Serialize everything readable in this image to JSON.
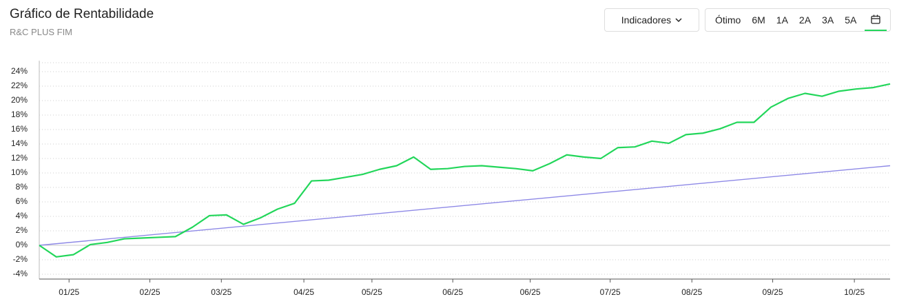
{
  "header": {
    "title": "Gráfico de Rentabilidade",
    "subtitle": "R&C PLUS FIM",
    "indicators": "Indicadores",
    "periods": [
      "Ótimo",
      "6M",
      "1A",
      "2A",
      "3A",
      "5A"
    ]
  },
  "chart_data": {
    "type": "line",
    "xlim": [
      0,
      100
    ],
    "xticks": [
      {
        "value": 3.5,
        "label": "01/25"
      },
      {
        "value": 13,
        "label": "02/25"
      },
      {
        "value": 21.4,
        "label": "03/25"
      },
      {
        "value": 31.1,
        "label": "04/25"
      },
      {
        "value": 39.1,
        "label": "05/25"
      },
      {
        "value": 48.6,
        "label": "06/25"
      },
      {
        "value": 57.7,
        "label": "06/25"
      },
      {
        "value": 67.1,
        "label": "07/25"
      },
      {
        "value": 76.7,
        "label": "08/25"
      },
      {
        "value": 86.2,
        "label": "09/25"
      },
      {
        "value": 95.8,
        "label": "10/25"
      }
    ],
    "ylim": [
      -4,
      24
    ],
    "yticks": [
      {
        "value": -4,
        "label": "-4%"
      },
      {
        "value": -2,
        "label": "-2%"
      },
      {
        "value": 0,
        "label": "0%"
      },
      {
        "value": 2,
        "label": "2%"
      },
      {
        "value": 4,
        "label": "4%"
      },
      {
        "value": 6,
        "label": "6%"
      },
      {
        "value": 8,
        "label": "8%"
      },
      {
        "value": 10,
        "label": "10%"
      },
      {
        "value": 12,
        "label": "12%"
      },
      {
        "value": 14,
        "label": "14%"
      },
      {
        "value": 16,
        "label": "16%"
      },
      {
        "value": 18,
        "label": "18%"
      },
      {
        "value": 20,
        "label": "20%"
      },
      {
        "value": 22,
        "label": "22%"
      },
      {
        "value": 24,
        "label": "24%"
      }
    ],
    "grid": true,
    "series": [
      {
        "color": "#22d65a",
        "x": [
          0,
          2,
          4,
          6,
          8,
          10,
          12,
          14,
          16,
          18,
          20,
          22,
          24,
          26,
          28,
          30,
          32,
          34,
          36,
          38,
          40,
          42,
          44,
          46,
          48,
          50,
          52,
          54,
          56,
          58,
          60,
          62,
          64,
          66,
          68,
          70,
          72,
          74,
          76,
          78,
          80,
          82,
          84,
          86,
          88,
          90,
          92,
          94,
          96,
          98,
          100
        ],
        "values": [
          0,
          -1.6,
          -1.3,
          0.1,
          0.4,
          0.9,
          1.0,
          1.1,
          1.2,
          2.5,
          4.1,
          4.2,
          2.9,
          3.8,
          5.0,
          5.8,
          8.9,
          9.0,
          9.4,
          9.8,
          10.5,
          11.0,
          12.2,
          10.5,
          10.6,
          10.9,
          11.0,
          10.8,
          10.6,
          10.3,
          11.3,
          12.5,
          12.2,
          12.0,
          13.5,
          13.6,
          14.4,
          14.1,
          15.3,
          15.5,
          16.1,
          17.0,
          17.0,
          19.1,
          20.3,
          21.0,
          20.6,
          21.3,
          21.6,
          21.8,
          22.3
        ]
      },
      {
        "color": "#8d88e6",
        "x": [
          0,
          100
        ],
        "values": [
          0,
          11.0
        ]
      }
    ]
  }
}
